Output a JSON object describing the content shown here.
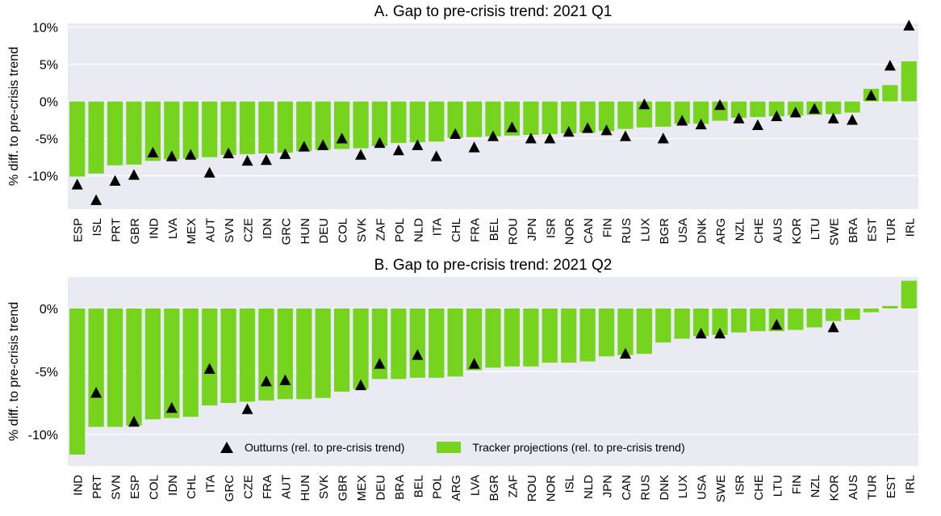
{
  "colors": {
    "bar": "#76d41f",
    "marker": "#000000",
    "plot_bg": "#eaeaf2",
    "grid": "#ffffff"
  },
  "legend": {
    "outturns_label": "Outturns (rel. to pre-crisis trend)",
    "tracker_label": "Tracker projections (rel. to pre-crisis trend)"
  },
  "chart_data": [
    {
      "type": "bar",
      "title": "A. Gap to pre-crisis trend: 2021 Q1",
      "ylabel": "% diff. to pre-crisis trend",
      "ylim": [
        -14.5,
        10.5
      ],
      "yticks": [
        10,
        5,
        0,
        -5,
        -10
      ],
      "ytick_labels": [
        "10%",
        "5%",
        "0%",
        "-5%",
        "-10%"
      ],
      "grid": true,
      "categories": [
        "ESP",
        "ISL",
        "PRT",
        "GBR",
        "IND",
        "LVA",
        "MEX",
        "AUT",
        "SVN",
        "CZE",
        "IDN",
        "GRC",
        "HUN",
        "DEU",
        "COL",
        "SVK",
        "ZAF",
        "POL",
        "NLD",
        "ITA",
        "CHL",
        "FRA",
        "BEL",
        "ROU",
        "JPN",
        "ISR",
        "NOR",
        "CAN",
        "FIN",
        "RUS",
        "LUX",
        "BGR",
        "USA",
        "DNK",
        "ARG",
        "NZL",
        "CHE",
        "AUS",
        "KOR",
        "LTU",
        "SWE",
        "BRA",
        "EST",
        "TUR",
        "IRL"
      ],
      "series": [
        {
          "name": "Tracker projections (rel. to pre-crisis trend)",
          "values": [
            -10.1,
            -9.7,
            -8.6,
            -8.5,
            -8.0,
            -7.8,
            -7.7,
            -7.5,
            -7.2,
            -7.1,
            -7.0,
            -6.9,
            -6.7,
            -6.5,
            -6.4,
            -6.3,
            -6.0,
            -5.6,
            -5.5,
            -5.4,
            -4.9,
            -4.8,
            -4.7,
            -4.6,
            -4.5,
            -4.4,
            -4.3,
            -4.2,
            -4.0,
            -3.7,
            -3.5,
            -3.4,
            -3.0,
            -3.0,
            -2.6,
            -2.2,
            -2.1,
            -2.0,
            -1.9,
            -1.8,
            -1.7,
            -1.5,
            1.7,
            2.2,
            5.4
          ]
        },
        {
          "name": "Outturns (rel. to pre-crisis trend)",
          "values": [
            -11.2,
            -13.3,
            -10.7,
            -9.9,
            -6.9,
            -7.4,
            -7.2,
            -9.6,
            -7.0,
            -8.0,
            -7.9,
            -7.1,
            -6.1,
            -5.9,
            -5.0,
            -7.2,
            -5.6,
            -6.6,
            -5.9,
            -7.4,
            -4.4,
            -6.2,
            -4.7,
            -3.5,
            -5.0,
            -5.0,
            -4.1,
            -3.6,
            -3.9,
            -4.7,
            -0.4,
            -5.0,
            -2.6,
            -3.1,
            -0.5,
            -2.3,
            -3.2,
            -2.0,
            -1.5,
            -1.0,
            -2.3,
            -2.5,
            0.8,
            4.8,
            10.2
          ]
        }
      ]
    },
    {
      "type": "bar",
      "title": "B. Gap to pre-crisis trend: 2021 Q2",
      "ylabel": "% diff. to pre-crisis trend",
      "ylim": [
        -12.5,
        2.5
      ],
      "yticks": [
        0,
        -5,
        -10
      ],
      "ytick_labels": [
        "0%",
        "-5%",
        "-10%"
      ],
      "grid": true,
      "categories": [
        "IND",
        "PRT",
        "SVN",
        "ESP",
        "COL",
        "IDN",
        "CHL",
        "ITA",
        "GRC",
        "CZE",
        "FRA",
        "AUT",
        "HUN",
        "SVK",
        "GBR",
        "MEX",
        "DEU",
        "BRA",
        "BEL",
        "POL",
        "ARG",
        "LVA",
        "BGR",
        "ZAF",
        "ROU",
        "NOR",
        "ISL",
        "NLD",
        "JPN",
        "CAN",
        "RUS",
        "DNK",
        "LUX",
        "USA",
        "SWE",
        "ISR",
        "CHE",
        "LTU",
        "FIN",
        "NZL",
        "KOR",
        "AUS",
        "TUR",
        "EST",
        "IRL"
      ],
      "series": [
        {
          "name": "Tracker projections (rel. to pre-crisis trend)",
          "values": [
            -11.6,
            -9.4,
            -9.4,
            -9.3,
            -8.8,
            -8.7,
            -8.6,
            -7.7,
            -7.5,
            -7.4,
            -7.3,
            -7.2,
            -7.2,
            -7.1,
            -6.6,
            -6.4,
            -5.6,
            -5.6,
            -5.5,
            -5.5,
            -5.4,
            -4.9,
            -4.7,
            -4.6,
            -4.6,
            -4.3,
            -4.3,
            -4.2,
            -3.8,
            -3.7,
            -3.6,
            -2.7,
            -2.4,
            -2.2,
            -2.1,
            -1.9,
            -1.8,
            -1.8,
            -1.7,
            -1.5,
            -1.0,
            -0.9,
            -0.3,
            0.2,
            2.2
          ]
        },
        {
          "name": "Outturns (rel. to pre-crisis trend)",
          "values": [
            null,
            -6.7,
            null,
            -9.0,
            null,
            -7.9,
            null,
            -4.8,
            null,
            -8.0,
            -5.8,
            -5.7,
            null,
            null,
            null,
            -6.1,
            -4.4,
            null,
            -3.7,
            null,
            null,
            -4.4,
            null,
            null,
            null,
            null,
            null,
            null,
            null,
            -3.6,
            null,
            null,
            null,
            -2.0,
            -2.0,
            null,
            null,
            -1.3,
            null,
            null,
            -1.5,
            null,
            null,
            null,
            null
          ]
        }
      ]
    }
  ]
}
